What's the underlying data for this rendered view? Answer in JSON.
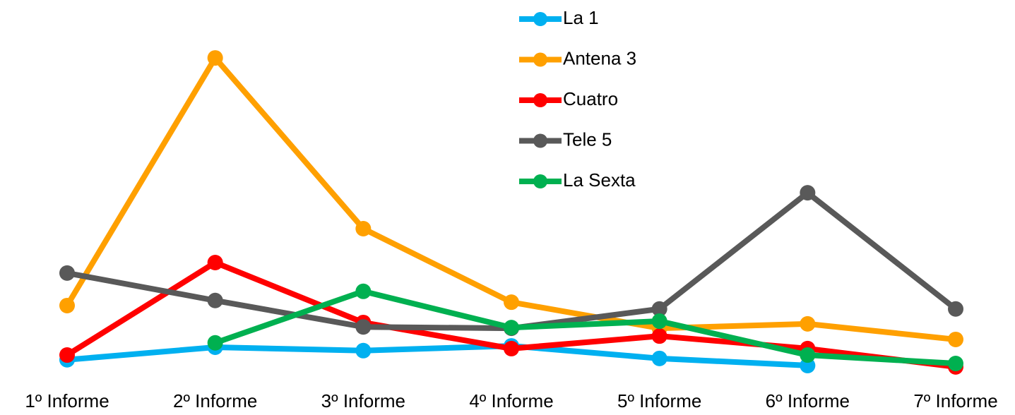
{
  "chart_data": {
    "type": "line",
    "categories": [
      "1º Informe",
      "2º Informe",
      "3º Informe",
      "4º Informe",
      "5º Informe",
      "6º Informe",
      "7º Informe"
    ],
    "series": [
      {
        "name": "La 1",
        "color": "#00b0f0",
        "values": [
          6.3,
          10,
          9,
          10.4,
          6.7,
          4.6,
          null
        ]
      },
      {
        "name": "Antena 3",
        "color": "#ffa000",
        "values": [
          22.3,
          95.4,
          45,
          23.3,
          15.6,
          16.9,
          12.3
        ]
      },
      {
        "name": "Cuatro",
        "color": "#ff0000",
        "values": [
          7.7,
          35,
          17.3,
          9.6,
          13.3,
          9.6,
          4.2
        ]
      },
      {
        "name": "Tele 5",
        "color": "#595959",
        "values": [
          31.9,
          23.8,
          16,
          15.6,
          21.3,
          55.6,
          21.3
        ]
      },
      {
        "name": "La Sexta",
        "color": "#00b050",
        "values": [
          null,
          11.3,
          26.5,
          15.8,
          17.7,
          7.7,
          5.2
        ]
      }
    ],
    "ylim": [
      0,
      100
    ]
  }
}
